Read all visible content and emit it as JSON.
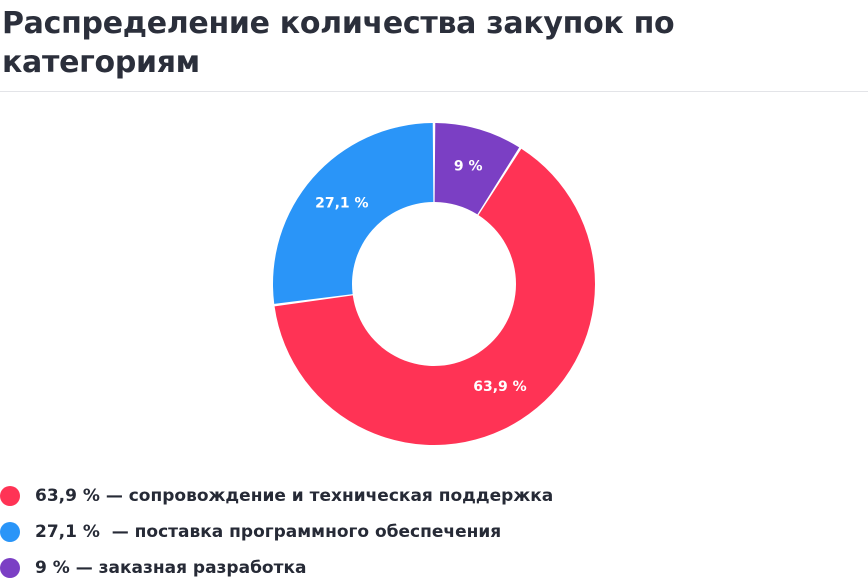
{
  "chart_data": {
    "type": "pie",
    "title": "Распределение количества закупок по категориям",
    "slices": [
      {
        "value": 63.9,
        "label": "63,9 %",
        "color": "#ff3355"
      },
      {
        "value": 27.1,
        "label": "27,1 %",
        "color": "#2a95f8"
      },
      {
        "value": 9.0,
        "label": "9 %",
        "color": "#7b3fc4"
      }
    ],
    "legend_position": "bottom-left",
    "legend": [
      {
        "text": "63,9 % — сопровождение и техническая поддержка",
        "color": "#ff3355"
      },
      {
        "text": "27,1 %  — поставка программного обеспечения",
        "color": "#2a95f8"
      },
      {
        "text": "9 % — заказная разработка",
        "color": "#7b3fc4"
      }
    ]
  }
}
